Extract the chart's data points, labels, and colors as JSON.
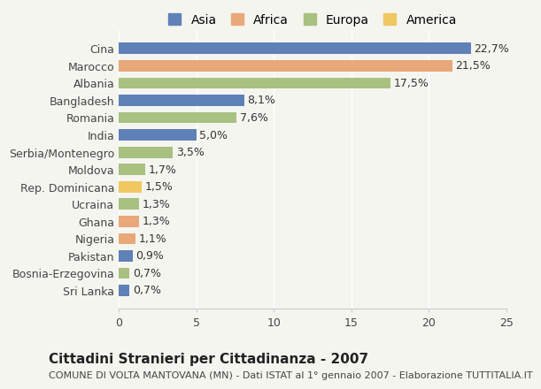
{
  "categories": [
    "Sri Lanka",
    "Bosnia-Erzegovina",
    "Pakistan",
    "Nigeria",
    "Ghana",
    "Ucraina",
    "Rep. Dominicana",
    "Moldova",
    "Serbia/Montenegro",
    "India",
    "Romania",
    "Bangladesh",
    "Albania",
    "Marocco",
    "Cina"
  ],
  "values": [
    0.7,
    0.7,
    0.9,
    1.1,
    1.3,
    1.3,
    1.5,
    1.7,
    3.5,
    5.0,
    7.6,
    8.1,
    17.5,
    21.5,
    22.7
  ],
  "labels": [
    "0,7%",
    "0,7%",
    "0,9%",
    "1,1%",
    "1,3%",
    "1,3%",
    "1,5%",
    "1,7%",
    "3,5%",
    "5,0%",
    "7,6%",
    "8,1%",
    "17,5%",
    "21,5%",
    "22,7%"
  ],
  "continents": [
    "Asia",
    "Europa",
    "Asia",
    "Africa",
    "Africa",
    "Europa",
    "America",
    "Europa",
    "Europa",
    "Asia",
    "Europa",
    "Asia",
    "Europa",
    "Africa",
    "Asia"
  ],
  "continent_colors": {
    "Asia": "#6080b8",
    "Africa": "#e8a878",
    "Europa": "#a8c080",
    "America": "#f0c860"
  },
  "legend_order": [
    "Asia",
    "Africa",
    "Europa",
    "America"
  ],
  "legend_colors": [
    "#6080b8",
    "#e8a878",
    "#a8c080",
    "#f0c860"
  ],
  "xlim": [
    0,
    25
  ],
  "xticks": [
    0,
    5,
    10,
    15,
    20,
    25
  ],
  "title": "Cittadini Stranieri per Cittadinanza - 2007",
  "subtitle": "COMUNE DI VOLTA MANTOVANA (MN) - Dati ISTAT al 1° gennaio 2007 - Elaborazione TUTTITALIA.IT",
  "background_color": "#f5f5f0",
  "bar_edge_color": "none",
  "bar_height": 0.65,
  "label_fontsize": 9,
  "tick_fontsize": 9,
  "title_fontsize": 11,
  "subtitle_fontsize": 8
}
